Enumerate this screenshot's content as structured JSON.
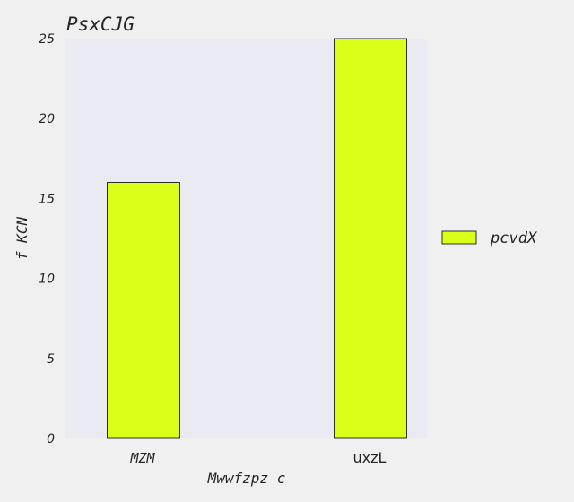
{
  "chart_data": {
    "type": "bar",
    "title": "PsxCJG",
    "xlabel": "Mwwfzpz c",
    "ylabel": "f KCN",
    "categories": [
      "MZM",
      "uxzL"
    ],
    "series": [
      {
        "name": "pcvdX",
        "values": [
          16,
          25
        ]
      }
    ],
    "ylim": [
      0,
      25
    ],
    "yticks": [
      "0",
      "5",
      "10",
      "15",
      "20",
      "25"
    ],
    "grid": false,
    "legend": "right",
    "colors": {
      "bar_fill": "#dcff1a",
      "bar_stroke": "#000000",
      "plot_background": "#eaeaf2",
      "figure_background": "#f0f0f0",
      "text": "#262626"
    }
  }
}
